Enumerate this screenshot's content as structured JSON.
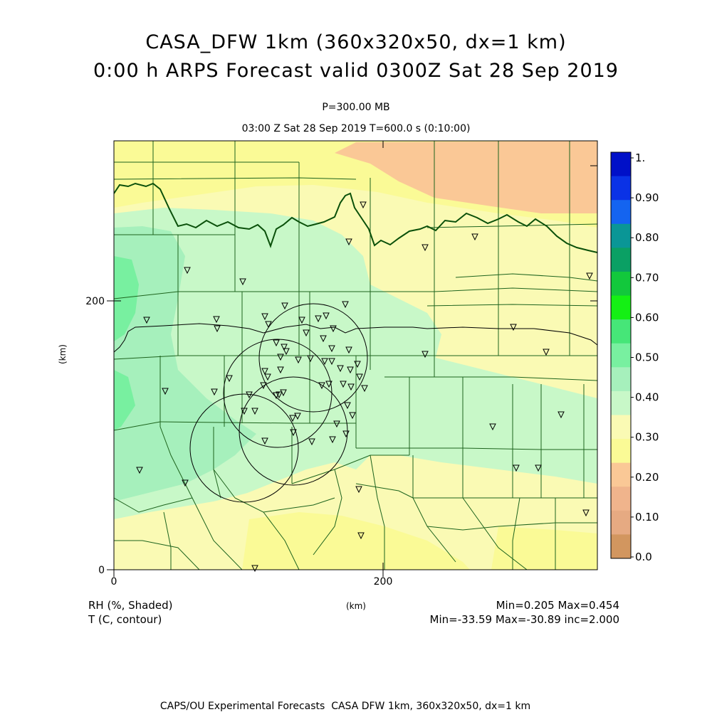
{
  "title": {
    "line1": "CASA_DFW 1km (360x320x50, dx=1 km)",
    "line2": "0:00 h ARPS Forecast valid 0300Z Sat 28 Sep 2019"
  },
  "subtitle": {
    "level": "P=300.00 MB",
    "time": "03:00 Z Sat 28 Sep 2019    T=600.0 s (0:10:00)"
  },
  "axes": {
    "x_ticks": [
      "0",
      "200"
    ],
    "y_ticks": [
      "0",
      "200"
    ],
    "x_unit": "(km)",
    "y_unit": "(km)"
  },
  "legend": {
    "labels": [
      "1.",
      "0.90",
      "0.80",
      "0.70",
      "0.60",
      "0.50",
      "0.40",
      "0.30",
      "0.20",
      "0.10",
      "0.0"
    ],
    "colors": [
      "#0010c8",
      "#0a32e6",
      "#1464f0",
      "#0a9696",
      "#0aa064",
      "#12c83c",
      "#14f014",
      "#46e678",
      "#78f0a0",
      "#a6f0bc",
      "#c8f8c8",
      "#fafab4",
      "#fafa96",
      "#fac896",
      "#f0b48c",
      "#e6aa82",
      "#d2965f"
    ]
  },
  "field_info": {
    "rh_label": "RH (%, Shaded)",
    "t_label": "T (C, contour)",
    "rh_range": "Min=0.205 Max=0.454",
    "t_range": "Min=-33.59 Max=-30.89 inc=2.000"
  },
  "footer": "CAPS/OU Experimental Forecasts  CASA DFW 1km, 360x320x50, dx=1 km",
  "colors": {
    "county_line": "#1e641e",
    "state_border": "#0a500a",
    "contour": "#000000"
  }
}
